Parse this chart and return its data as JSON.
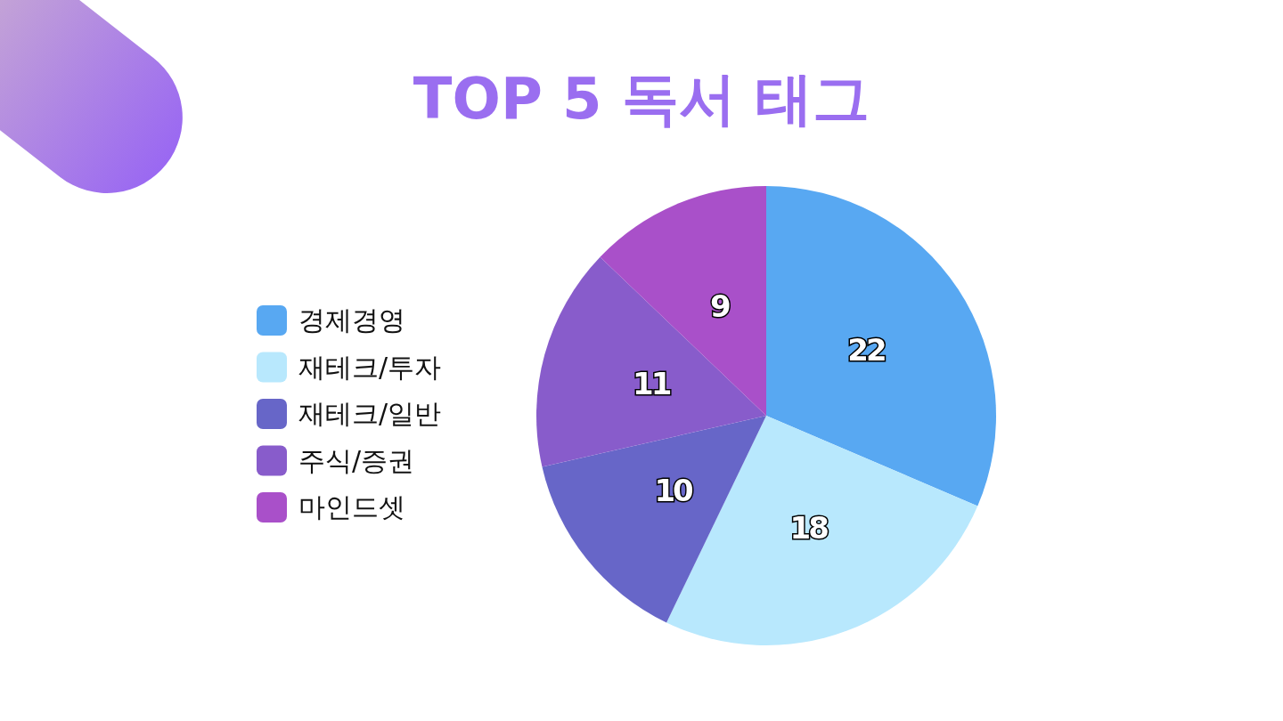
{
  "chart_data": {
    "type": "pie",
    "title": "TOP 5 독서 태그",
    "categories": [
      "경제경영",
      "재테크/투자",
      "재테크/일반",
      "주식/증권",
      "마인드셋"
    ],
    "values": [
      22,
      18,
      10,
      11,
      9
    ],
    "colors": [
      "#58a8f2",
      "#b8e8fd",
      "#6766c8",
      "#885ccb",
      "#a950c9"
    ],
    "legend": "left",
    "data_labels": true
  }
}
